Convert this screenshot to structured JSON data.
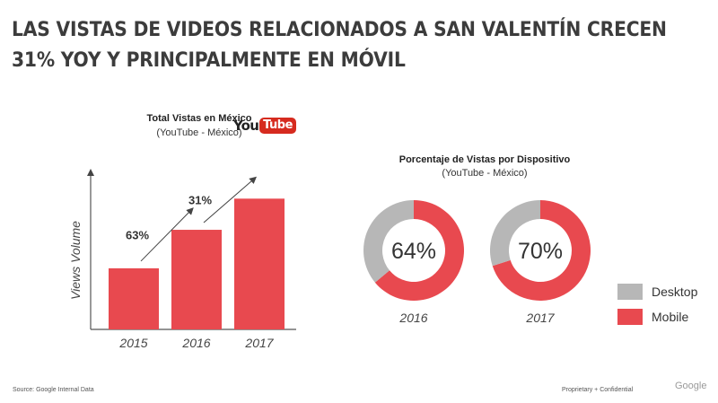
{
  "headline": {
    "line1": "LAS VISTAS DE VIDEOS RELACIONADOS A SAN VALENTÍN CRECEN",
    "line2": "31% YOY Y PRINCIPALMENTE EN MÓVIL"
  },
  "logo": {
    "part1": "You",
    "part2": "Tube"
  },
  "chart_data": [
    {
      "type": "bar",
      "title": "Total Vistas en México",
      "subtitle": "(YouTube - México)",
      "ylabel": "Views Volume",
      "categories": [
        "2015",
        "2016",
        "2017"
      ],
      "values": [
        100,
        163,
        214
      ],
      "ylim": [
        0,
        260
      ],
      "annotations": [
        {
          "text": "63%",
          "from": "2015",
          "to": "2016"
        },
        {
          "text": "31%",
          "from": "2016",
          "to": "2017"
        }
      ],
      "color": "#e8494f"
    },
    {
      "type": "pie",
      "title": "Porcentaje de Vistas por Dispositivo",
      "subtitle": "(YouTube - México)",
      "legend": [
        "Desktop",
        "Mobile"
      ],
      "colors": {
        "Desktop": "#b7b7b7",
        "Mobile": "#e8494f"
      },
      "donuts": [
        {
          "label": "2016",
          "center_text": "64%",
          "values": {
            "Mobile": 64,
            "Desktop": 36
          }
        },
        {
          "label": "2017",
          "center_text": "70%",
          "values": {
            "Mobile": 70,
            "Desktop": 30
          }
        }
      ]
    }
  ],
  "footer": {
    "source": "Source: Google Internal Data",
    "confidential": "Proprietary + Confidential",
    "brand": "Google"
  }
}
